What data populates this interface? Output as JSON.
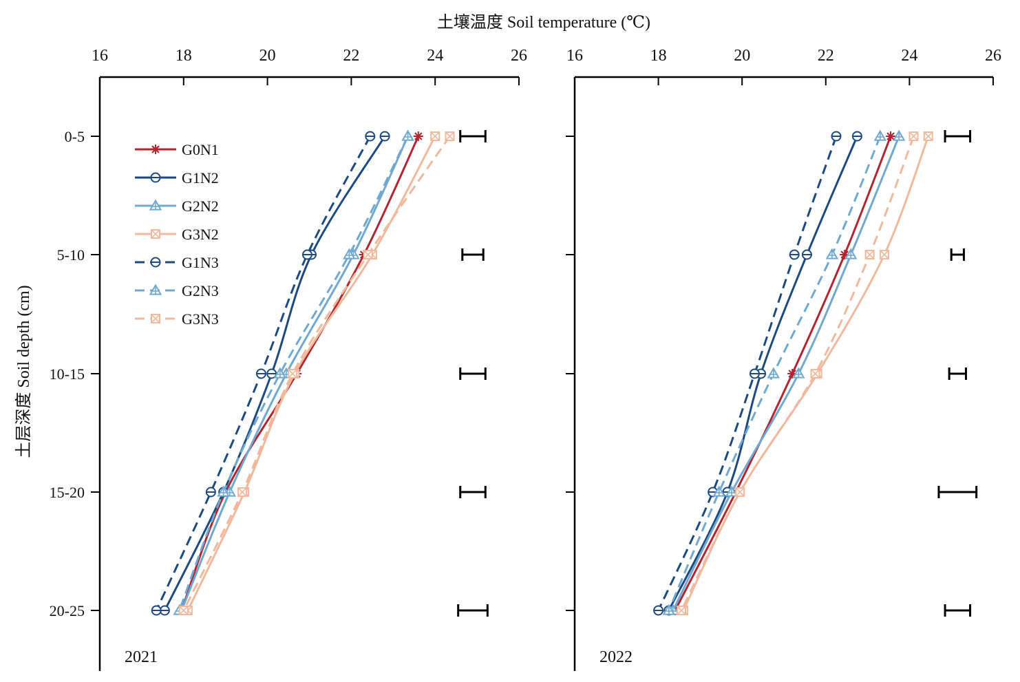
{
  "figure": {
    "top_title": "土壤温度 Soil temperature (℃)",
    "y_axis_title": "土层深度 Soil depth (cm)"
  },
  "chart_data": [
    {
      "type": "line",
      "panel_label": "2021",
      "xlabel": "土壤温度 Soil temperature (℃)",
      "ylabel": "土层深度 Soil depth (cm)",
      "xlim": [
        16,
        26
      ],
      "x_ticks": [
        16,
        18,
        20,
        22,
        24,
        26
      ],
      "x_axis_position": "top",
      "categories": [
        "0-5",
        "5-10",
        "10-15",
        "15-20",
        "20-25"
      ],
      "y_orientation": "depth increasing downward",
      "series": [
        {
          "name": "G0N1",
          "values": [
            23.6,
            22.3,
            20.7,
            19.0,
            17.95
          ]
        },
        {
          "name": "G1N2",
          "values": [
            22.8,
            21.05,
            20.1,
            18.95,
            17.55
          ]
        },
        {
          "name": "G2N2",
          "values": [
            23.35,
            22.05,
            20.45,
            19.1,
            17.95
          ]
        },
        {
          "name": "G3N2",
          "values": [
            24.0,
            22.5,
            20.65,
            19.45,
            18.1
          ]
        },
        {
          "name": "G1N3",
          "values": [
            22.45,
            20.95,
            19.85,
            18.65,
            17.35
          ]
        },
        {
          "name": "G2N3",
          "values": [
            23.35,
            21.95,
            20.3,
            18.95,
            17.9
          ]
        },
        {
          "name": "G3N3",
          "values": [
            24.35,
            22.4,
            20.6,
            19.4,
            18.0
          ]
        }
      ],
      "error_bars": [
        {
          "category": "0-5",
          "center": 24.9,
          "half_width": 0.3
        },
        {
          "category": "5-10",
          "center": 24.9,
          "half_width": 0.25
        },
        {
          "category": "10-15",
          "center": 24.9,
          "half_width": 0.3
        },
        {
          "category": "15-20",
          "center": 24.9,
          "half_width": 0.3
        },
        {
          "category": "20-25",
          "center": 24.9,
          "half_width": 0.35
        }
      ]
    },
    {
      "type": "line",
      "panel_label": "2022",
      "xlabel": "土壤温度 Soil temperature (℃)",
      "ylabel": "",
      "xlim": [
        16,
        26
      ],
      "x_ticks": [
        16,
        18,
        20,
        22,
        24,
        26
      ],
      "x_axis_position": "top",
      "categories": [
        "0-5",
        "5-10",
        "10-15",
        "15-20",
        "20-25"
      ],
      "y_orientation": "depth increasing downward",
      "series": [
        {
          "name": "G0N1",
          "values": [
            23.55,
            22.45,
            21.2,
            19.85,
            18.4
          ]
        },
        {
          "name": "G1N2",
          "values": [
            22.75,
            21.55,
            20.45,
            19.65,
            18.25
          ]
        },
        {
          "name": "G2N2",
          "values": [
            23.75,
            22.6,
            21.35,
            19.75,
            18.35
          ]
        },
        {
          "name": "G3N2",
          "values": [
            24.45,
            23.4,
            21.8,
            19.95,
            18.6
          ]
        },
        {
          "name": "G1N3",
          "values": [
            22.25,
            21.25,
            20.3,
            19.3,
            18.0
          ]
        },
        {
          "name": "G2N3",
          "values": [
            23.3,
            22.15,
            20.75,
            19.45,
            18.25
          ]
        },
        {
          "name": "G3N3",
          "values": [
            24.1,
            23.05,
            21.75,
            19.95,
            18.55
          ]
        }
      ],
      "error_bars": [
        {
          "category": "0-5",
          "center": 25.15,
          "half_width": 0.3
        },
        {
          "category": "5-10",
          "center": 25.15,
          "half_width": 0.15
        },
        {
          "category": "10-15",
          "center": 25.15,
          "half_width": 0.2
        },
        {
          "category": "15-20",
          "center": 25.15,
          "half_width": 0.45
        },
        {
          "category": "20-25",
          "center": 25.15,
          "half_width": 0.3
        }
      ]
    }
  ],
  "legend": {
    "placement": "top-left of first panel",
    "items": [
      {
        "label": "G0N1",
        "color": "#b3242e",
        "dash": false,
        "marker": "asterisk"
      },
      {
        "label": "G1N2",
        "color": "#1b4a82",
        "dash": false,
        "marker": "circle"
      },
      {
        "label": "G2N2",
        "color": "#6fa9d2",
        "dash": false,
        "marker": "triangle"
      },
      {
        "label": "G3N2",
        "color": "#f2b89c",
        "dash": false,
        "marker": "square-x"
      },
      {
        "label": "G1N3",
        "color": "#1b4a82",
        "dash": true,
        "marker": "circle"
      },
      {
        "label": "G2N3",
        "color": "#6fa9d2",
        "dash": true,
        "marker": "triangle"
      },
      {
        "label": "G3N3",
        "color": "#f2b89c",
        "dash": true,
        "marker": "square-x"
      }
    ]
  }
}
